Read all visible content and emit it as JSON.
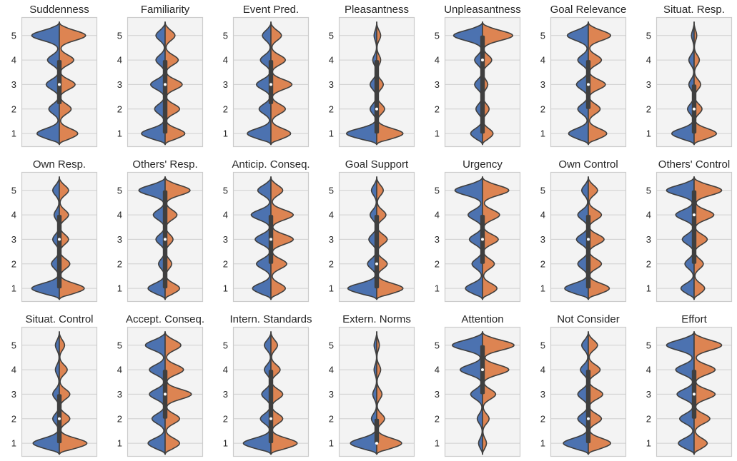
{
  "chart_data": {
    "type": "violin",
    "split": true,
    "grid": true,
    "legend": "none",
    "colors": {
      "left": "#4c72b0",
      "right": "#dd8452",
      "panel_bg": "#f3f3f3",
      "frame": "#cccccc",
      "outline": "#3f3f3f",
      "box": "#3f3f3f"
    },
    "ylim": [
      0.45,
      5.75
    ],
    "yticks": [
      1,
      2,
      3,
      4,
      5
    ],
    "panels": [
      {
        "title": "Suddenness",
        "left": [
          0.34,
          0.16,
          0.2,
          0.18,
          0.42
        ],
        "right": [
          0.28,
          0.18,
          0.24,
          0.22,
          0.4
        ],
        "q1": 2.2,
        "median": 3,
        "q3": 4
      },
      {
        "title": "Familiarity",
        "left": [
          0.36,
          0.16,
          0.22,
          0.14,
          0.14
        ],
        "right": [
          0.3,
          0.22,
          0.26,
          0.2,
          0.15
        ],
        "q1": 1,
        "median": 3,
        "q3": 4
      },
      {
        "title": "Event Pred.",
        "left": [
          0.36,
          0.18,
          0.22,
          0.16,
          0.13
        ],
        "right": [
          0.3,
          0.22,
          0.32,
          0.22,
          0.16
        ],
        "q1": 2.2,
        "median": 3,
        "q3": 4
      },
      {
        "title": "Pleasantness",
        "left": [
          0.46,
          0.1,
          0.1,
          0.06,
          0.04
        ],
        "right": [
          0.4,
          0.12,
          0.1,
          0.06,
          0.06
        ],
        "q1": 1,
        "median": 2,
        "q3": 4
      },
      {
        "title": "Unpleasantness",
        "left": [
          0.18,
          0.1,
          0.12,
          0.12,
          0.44
        ],
        "right": [
          0.16,
          0.1,
          0.08,
          0.14,
          0.46
        ],
        "q1": 1,
        "median": 4,
        "q3": 5
      },
      {
        "title": "Goal Relevance",
        "left": [
          0.3,
          0.16,
          0.18,
          0.16,
          0.32
        ],
        "right": [
          0.28,
          0.18,
          0.26,
          0.2,
          0.34
        ],
        "q1": 2,
        "median": 3,
        "q3": 4
      },
      {
        "title": "Situat. Resp.",
        "left": [
          0.34,
          0.1,
          0.08,
          0.08,
          0.04
        ],
        "right": [
          0.34,
          0.12,
          0.1,
          0.08,
          0.04
        ],
        "q1": 1,
        "median": 2,
        "q3": 3
      },
      {
        "title": "Own Resp.",
        "left": [
          0.42,
          0.12,
          0.1,
          0.08,
          0.1
        ],
        "right": [
          0.38,
          0.16,
          0.14,
          0.14,
          0.14
        ],
        "q1": 1,
        "median": 3,
        "q3": 4
      },
      {
        "title": "Others' Resp.",
        "left": [
          0.26,
          0.1,
          0.14,
          0.18,
          0.4
        ],
        "right": [
          0.22,
          0.1,
          0.12,
          0.18,
          0.38
        ],
        "q1": 1,
        "median": 3,
        "q3": 5
      },
      {
        "title": "Anticip. Conseq.",
        "left": [
          0.28,
          0.22,
          0.24,
          0.3,
          0.2
        ],
        "right": [
          0.22,
          0.24,
          0.34,
          0.34,
          0.18
        ],
        "q1": 2,
        "median": 3,
        "q3": 4
      },
      {
        "title": "Goal Support",
        "left": [
          0.44,
          0.14,
          0.12,
          0.1,
          0.08
        ],
        "right": [
          0.4,
          0.16,
          0.16,
          0.14,
          0.1
        ],
        "q1": 1,
        "median": 2,
        "q3": 4
      },
      {
        "title": "Urgency",
        "left": [
          0.26,
          0.16,
          0.2,
          0.22,
          0.42
        ],
        "right": [
          0.22,
          0.18,
          0.24,
          0.26,
          0.4
        ],
        "q1": 2,
        "median": 3,
        "q3": 4
      },
      {
        "title": "Own Control",
        "left": [
          0.36,
          0.16,
          0.18,
          0.16,
          0.1
        ],
        "right": [
          0.32,
          0.2,
          0.24,
          0.2,
          0.14
        ],
        "q1": 1,
        "median": 3,
        "q3": 4
      },
      {
        "title": "Others' Control",
        "left": [
          0.2,
          0.14,
          0.18,
          0.28,
          0.42
        ],
        "right": [
          0.16,
          0.14,
          0.2,
          0.3,
          0.42
        ],
        "q1": 2,
        "median": 4,
        "q3": 5
      },
      {
        "title": "Situat. Control",
        "left": [
          0.4,
          0.1,
          0.1,
          0.06,
          0.06
        ],
        "right": [
          0.42,
          0.16,
          0.16,
          0.12,
          0.08
        ],
        "q1": 1,
        "median": 2,
        "q3": 3
      },
      {
        "title": "Accept. Conseq.",
        "left": [
          0.26,
          0.2,
          0.24,
          0.24,
          0.3
        ],
        "right": [
          0.22,
          0.22,
          0.4,
          0.28,
          0.24
        ],
        "q1": 2,
        "median": 3,
        "q3": 4
      },
      {
        "title": "Intern. Standards",
        "left": [
          0.42,
          0.16,
          0.14,
          0.1,
          0.1
        ],
        "right": [
          0.4,
          0.18,
          0.18,
          0.14,
          0.1
        ],
        "q1": 1,
        "median": 2,
        "q3": 4
      },
      {
        "title": "Extern. Norms",
        "left": [
          0.4,
          0.08,
          0.06,
          0.04,
          0.04
        ],
        "right": [
          0.38,
          0.12,
          0.08,
          0.06,
          0.04
        ],
        "q1": 1,
        "median": 1,
        "q3": 2
      },
      {
        "title": "Attention",
        "left": [
          0.06,
          0.08,
          0.18,
          0.34,
          0.46
        ],
        "right": [
          0.06,
          0.1,
          0.2,
          0.4,
          0.48
        ],
        "q1": 3,
        "median": 4,
        "q3": 5
      },
      {
        "title": "Not Consider",
        "left": [
          0.38,
          0.16,
          0.16,
          0.12,
          0.1
        ],
        "right": [
          0.34,
          0.2,
          0.22,
          0.18,
          0.14
        ],
        "q1": 1,
        "median": 2,
        "q3": 4
      },
      {
        "title": "Effort",
        "left": [
          0.24,
          0.22,
          0.26,
          0.28,
          0.42
        ],
        "right": [
          0.2,
          0.24,
          0.32,
          0.32,
          0.42
        ],
        "q1": 2,
        "median": 3,
        "q3": 4
      }
    ]
  }
}
